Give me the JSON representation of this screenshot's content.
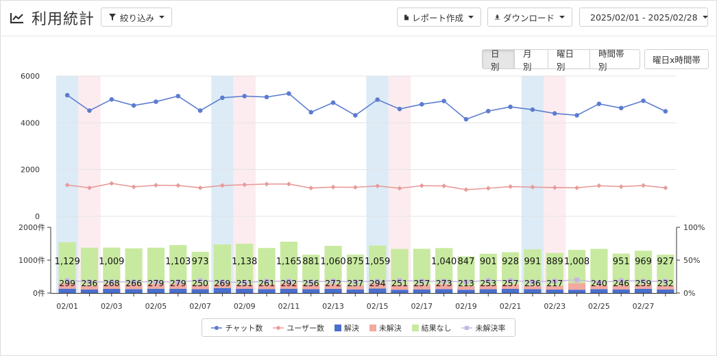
{
  "header": {
    "title": "利用統計",
    "filter_label": "絞り込み",
    "report_label": "レポート作成",
    "download_label": "ダウンロード",
    "date_range": "2025/02/01 - 2025/02/28"
  },
  "view_tabs": [
    {
      "label": "日別",
      "active": true
    },
    {
      "label": "月別",
      "active": false
    },
    {
      "label": "曜日別",
      "active": false
    },
    {
      "label": "時間帯別",
      "active": false
    }
  ],
  "view_extra": "曜日x時間帯",
  "legend": {
    "chat": "チャット数",
    "users": "ユーザー数",
    "resolved": "解決",
    "unresolved": "未解決",
    "no_result": "結果なし",
    "unresolved_rate": "未解決率"
  },
  "colors": {
    "chat": "#5b7ccf",
    "users": "#e89a9a",
    "resolved": "#4a6fcc",
    "unresolved": "#f2a9a0",
    "no_result": "#c8eaa0",
    "unresolved_rate": "#c6b6e4",
    "weekend_sat": "#dcebf6",
    "weekend_sun": "#fcecef"
  },
  "chart_data": [
    {
      "type": "line",
      "categories": [
        "02/01",
        "02/02",
        "02/03",
        "02/04",
        "02/05",
        "02/06",
        "02/07",
        "02/08",
        "02/09",
        "02/10",
        "02/11",
        "02/12",
        "02/13",
        "02/14",
        "02/15",
        "02/16",
        "02/17",
        "02/18",
        "02/19",
        "02/20",
        "02/21",
        "02/22",
        "02/23",
        "02/24",
        "02/25",
        "02/26",
        "02/27",
        "02/28"
      ],
      "x_tick_labels": [
        "02/01",
        "02/03",
        "02/05",
        "02/07",
        "02/09",
        "02/11",
        "02/13",
        "02/15",
        "02/17",
        "02/19",
        "02/21",
        "02/23",
        "02/25",
        "02/27"
      ],
      "series": [
        {
          "name": "チャット数",
          "values": [
            5180,
            4520,
            5000,
            4740,
            4900,
            5140,
            4520,
            5070,
            5140,
            5100,
            5250,
            4450,
            4860,
            4320,
            4990,
            4590,
            4790,
            4930,
            4150,
            4500,
            4680,
            4560,
            4400,
            4320,
            4810,
            4630,
            4940,
            4490
          ]
        },
        {
          "name": "ユーザー数",
          "values": [
            1340,
            1220,
            1410,
            1260,
            1330,
            1320,
            1220,
            1320,
            1350,
            1380,
            1380,
            1210,
            1250,
            1240,
            1300,
            1200,
            1310,
            1300,
            1140,
            1200,
            1270,
            1250,
            1230,
            1220,
            1310,
            1270,
            1320,
            1220
          ]
        }
      ],
      "y_ticks": [
        "0",
        "2000",
        "4000",
        "6000"
      ],
      "ylim": [
        0,
        6000
      ],
      "weekend_shading": {
        "saturday_indices": [
          0,
          7,
          14,
          21
        ],
        "sunday_indices": [
          1,
          8,
          15,
          22
        ]
      },
      "grid": true
    },
    {
      "type": "bar",
      "stacked": true,
      "categories": [
        "02/01",
        "02/02",
        "02/03",
        "02/04",
        "02/05",
        "02/06",
        "02/07",
        "02/08",
        "02/09",
        "02/10",
        "02/11",
        "02/12",
        "02/13",
        "02/14",
        "02/15",
        "02/16",
        "02/17",
        "02/18",
        "02/19",
        "02/20",
        "02/21",
        "02/22",
        "02/23",
        "02/24",
        "02/25",
        "02/26",
        "02/27",
        "02/28"
      ],
      "series": [
        {
          "name": "解決",
          "values": [
            130,
            110,
            125,
            118,
            130,
            130,
            115,
            150,
            130,
            120,
            130,
            115,
            128,
            110,
            135,
            100,
            110,
            120,
            100,
            115,
            125,
            115,
            105,
            100,
            118,
            110,
            125,
            110
          ]
        },
        {
          "name": "未解決",
          "values": [
            169,
            126,
            143,
            148,
            149,
            149,
            135,
            119,
            121,
            141,
            162,
            141,
            144,
            127,
            159,
            151,
            147,
            153,
            113,
            138,
            132,
            121,
            112,
            200,
            122,
            136,
            134,
            122
          ]
        },
        {
          "name": "結果なし",
          "values": [
            1247,
            1143,
            1115,
            1094,
            1101,
            1179,
            1004,
            1210,
            1248,
            1109,
            1271,
            910,
            1164,
            932,
            1151,
            1090,
            1090,
            1096,
            901,
            943,
            985,
            1092,
            1002,
            1014,
            1105,
            955,
            1028,
            937
          ]
        }
      ],
      "line_series": [
        {
          "name": "未解決率",
          "values": [
            19,
            17,
            17,
            17,
            17,
            17,
            19,
            17,
            16,
            18,
            18,
            17,
            18,
            17,
            18,
            19,
            18,
            18,
            17,
            19,
            19,
            17,
            18,
            20,
            16,
            19,
            18,
            18
          ]
        }
      ],
      "data_labels_total": [
        "1,129",
        "",
        "1,009",
        "",
        "",
        "1,103",
        "973",
        "",
        "1,138",
        "",
        "1,165",
        "881",
        "1,060",
        "875",
        "1,059",
        "",
        "",
        "1,040",
        "847",
        "901",
        "928",
        "991",
        "889",
        "1,008",
        "",
        "951",
        "969",
        "927"
      ],
      "data_labels_inner": [
        "299",
        "236",
        "268",
        "266",
        "279",
        "279",
        "250",
        "269",
        "251",
        "261",
        "292",
        "256",
        "272",
        "237",
        "294",
        "251",
        "257",
        "273",
        "213",
        "253",
        "257",
        "236",
        "217",
        "",
        "240",
        "246",
        "259",
        "232"
      ],
      "y_ticks": [
        "0件",
        "1000件",
        "2000件"
      ],
      "ylim": [
        0,
        2000
      ],
      "y2_ticks": [
        "0%",
        "50%",
        "100%"
      ],
      "y2lim": [
        0,
        100
      ],
      "x_tick_labels": [
        "02/01",
        "02/03",
        "02/05",
        "02/07",
        "02/09",
        "02/11",
        "02/13",
        "02/15",
        "02/17",
        "02/19",
        "02/21",
        "02/23",
        "02/25",
        "02/27"
      ]
    }
  ]
}
